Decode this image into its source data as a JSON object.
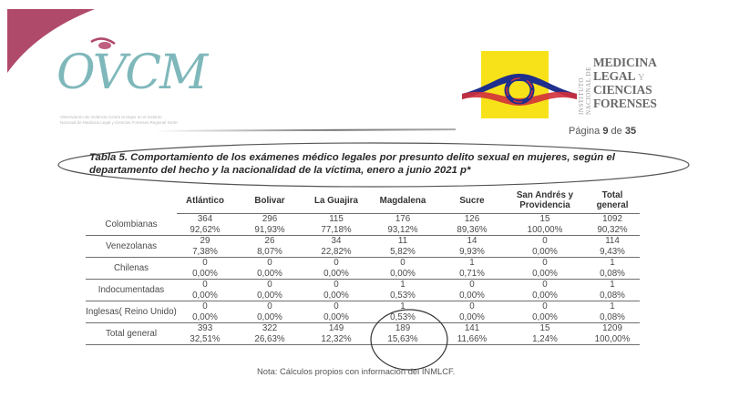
{
  "header": {
    "left_logo": {
      "name": "OVCM",
      "subtitle": "Observatorio de Violencia Contra la Mujer en el Instituto Nacional de Medicina Legal y Ciencias Forenses Regional Norte",
      "accent_color": "#b04a6a",
      "text_color": "#7fb8bb"
    },
    "right_logo": {
      "vertical_text": "INSTITUTO NACIONAL DE",
      "name_lines": [
        "MEDICINA",
        "LEGAL",
        "Y",
        "CIENCIAS",
        "FORENSES"
      ],
      "box_color": "#f7e21a"
    },
    "page": {
      "label": "Página",
      "current": "9",
      "sep": "de",
      "total": "35"
    }
  },
  "table": {
    "title": "Tabla 5. Comportamiento de los exámenes médico legales por presunto delito sexual en mujeres, según el departamento del hecho y la nacionalidad de la víctima, enero a junio 2021 p*",
    "columns": [
      "Atlántico",
      "Bolivar",
      "La Guajira",
      "Magdalena",
      "Sucre",
      "San Andrés y Providencia",
      "Total general"
    ],
    "rows": [
      {
        "label": "Colombianas",
        "counts": [
          "364",
          "296",
          "115",
          "176",
          "126",
          "15",
          "1092"
        ],
        "pcts": [
          "92,62%",
          "91,93%",
          "77,18%",
          "93,12%",
          "89,36%",
          "100,00%",
          "90,32%"
        ]
      },
      {
        "label": "Venezolanas",
        "counts": [
          "29",
          "26",
          "34",
          "11",
          "14",
          "0",
          "114"
        ],
        "pcts": [
          "7,38%",
          "8,07%",
          "22,82%",
          "5,82%",
          "9,93%",
          "0,00%",
          "9,43%"
        ]
      },
      {
        "label": "Chilenas",
        "counts": [
          "0",
          "0",
          "0",
          "0",
          "1",
          "0",
          "1"
        ],
        "pcts": [
          "0,00%",
          "0,00%",
          "0,00%",
          "0,00%",
          "0,71%",
          "0,00%",
          "0,08%"
        ]
      },
      {
        "label": "Indocumentadas",
        "counts": [
          "0",
          "0",
          "0",
          "1",
          "0",
          "0",
          "1"
        ],
        "pcts": [
          "0,00%",
          "0,00%",
          "0,00%",
          "0,53%",
          "0,00%",
          "0,00%",
          "0,08%"
        ]
      },
      {
        "label": "Inglesas( Reino Unido)",
        "counts": [
          "0",
          "0",
          "0",
          "1",
          "0",
          "0",
          "1"
        ],
        "pcts": [
          "0,00%",
          "0,00%",
          "0,00%",
          "0,53%",
          "0,00%",
          "0,00%",
          "0,08%"
        ]
      },
      {
        "label": "Total general",
        "counts": [
          "393",
          "322",
          "149",
          "189",
          "141",
          "15",
          "1209"
        ],
        "pcts": [
          "32,51%",
          "26,63%",
          "12,32%",
          "15,63%",
          "11,66%",
          "1,24%",
          "100,00%"
        ]
      }
    ],
    "note": "Nota: Cálculos propios con información del INMLCF."
  }
}
